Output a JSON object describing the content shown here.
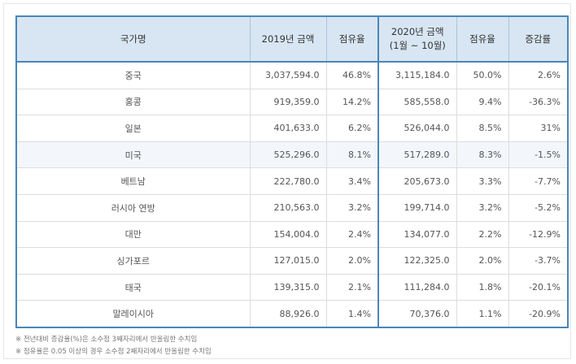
{
  "header": {
    "country": "국가명",
    "amount_2019": "2019년 금액",
    "share_2019": "점유율",
    "amount_2020_line1": "2020년 금액",
    "amount_2020_line2": "(1월 ~ 10월)",
    "share_2020": "점유율",
    "growth": "증감률"
  },
  "rows": [
    {
      "country": "중국",
      "a2019": "3,037,594.0",
      "s2019": "46.8%",
      "a2020": "3,115,184.0",
      "s2020": "50.0%",
      "growth": "2.6%"
    },
    {
      "country": "홍콩",
      "a2019": "919,359.0",
      "s2019": "14.2%",
      "a2020": "585,558.0",
      "s2020": "9.4%",
      "growth": "-36.3%"
    },
    {
      "country": "일본",
      "a2019": "401,633.0",
      "s2019": "6.2%",
      "a2020": "526,044.0",
      "s2020": "8.5%",
      "growth": "31%"
    },
    {
      "country": "미국",
      "a2019": "525,296.0",
      "s2019": "8.1%",
      "a2020": "517,289.0",
      "s2020": "8.3%",
      "growth": "-1.5%"
    },
    {
      "country": "베트남",
      "a2019": "222,780.0",
      "s2019": "3.4%",
      "a2020": "205,673.0",
      "s2020": "3.3%",
      "growth": "-7.7%"
    },
    {
      "country": "러시아 연방",
      "a2019": "210,563.0",
      "s2019": "3.2%",
      "a2020": "199,714.0",
      "s2020": "3.2%",
      "growth": "-5.2%"
    },
    {
      "country": "대만",
      "a2019": "154,004.0",
      "s2019": "2.4%",
      "a2020": "134,077.0",
      "s2020": "2.2%",
      "growth": "-12.9%"
    },
    {
      "country": "싱가포르",
      "a2019": "127,015.0",
      "s2019": "2.0%",
      "a2020": "122,325.0",
      "s2020": "2.0%",
      "growth": "-3.7%"
    },
    {
      "country": "태국",
      "a2019": "139,315.0",
      "s2019": "2.1%",
      "a2020": "111,284.0",
      "s2020": "1.8%",
      "growth": "-20.1%"
    },
    {
      "country": "말레이시아",
      "a2019": "88,926.0",
      "s2019": "1.4%",
      "a2020": "70,376.0",
      "s2020": "1.1%",
      "growth": "-20.9%"
    }
  ],
  "notes": [
    "※ 전년대비 증감율(%)은 소수점 3째자리에서 반올림한 수치임",
    "※ 점유율은 0.05 이상의 경우 소수점 2째자리에서 반올림한 수치임"
  ]
}
